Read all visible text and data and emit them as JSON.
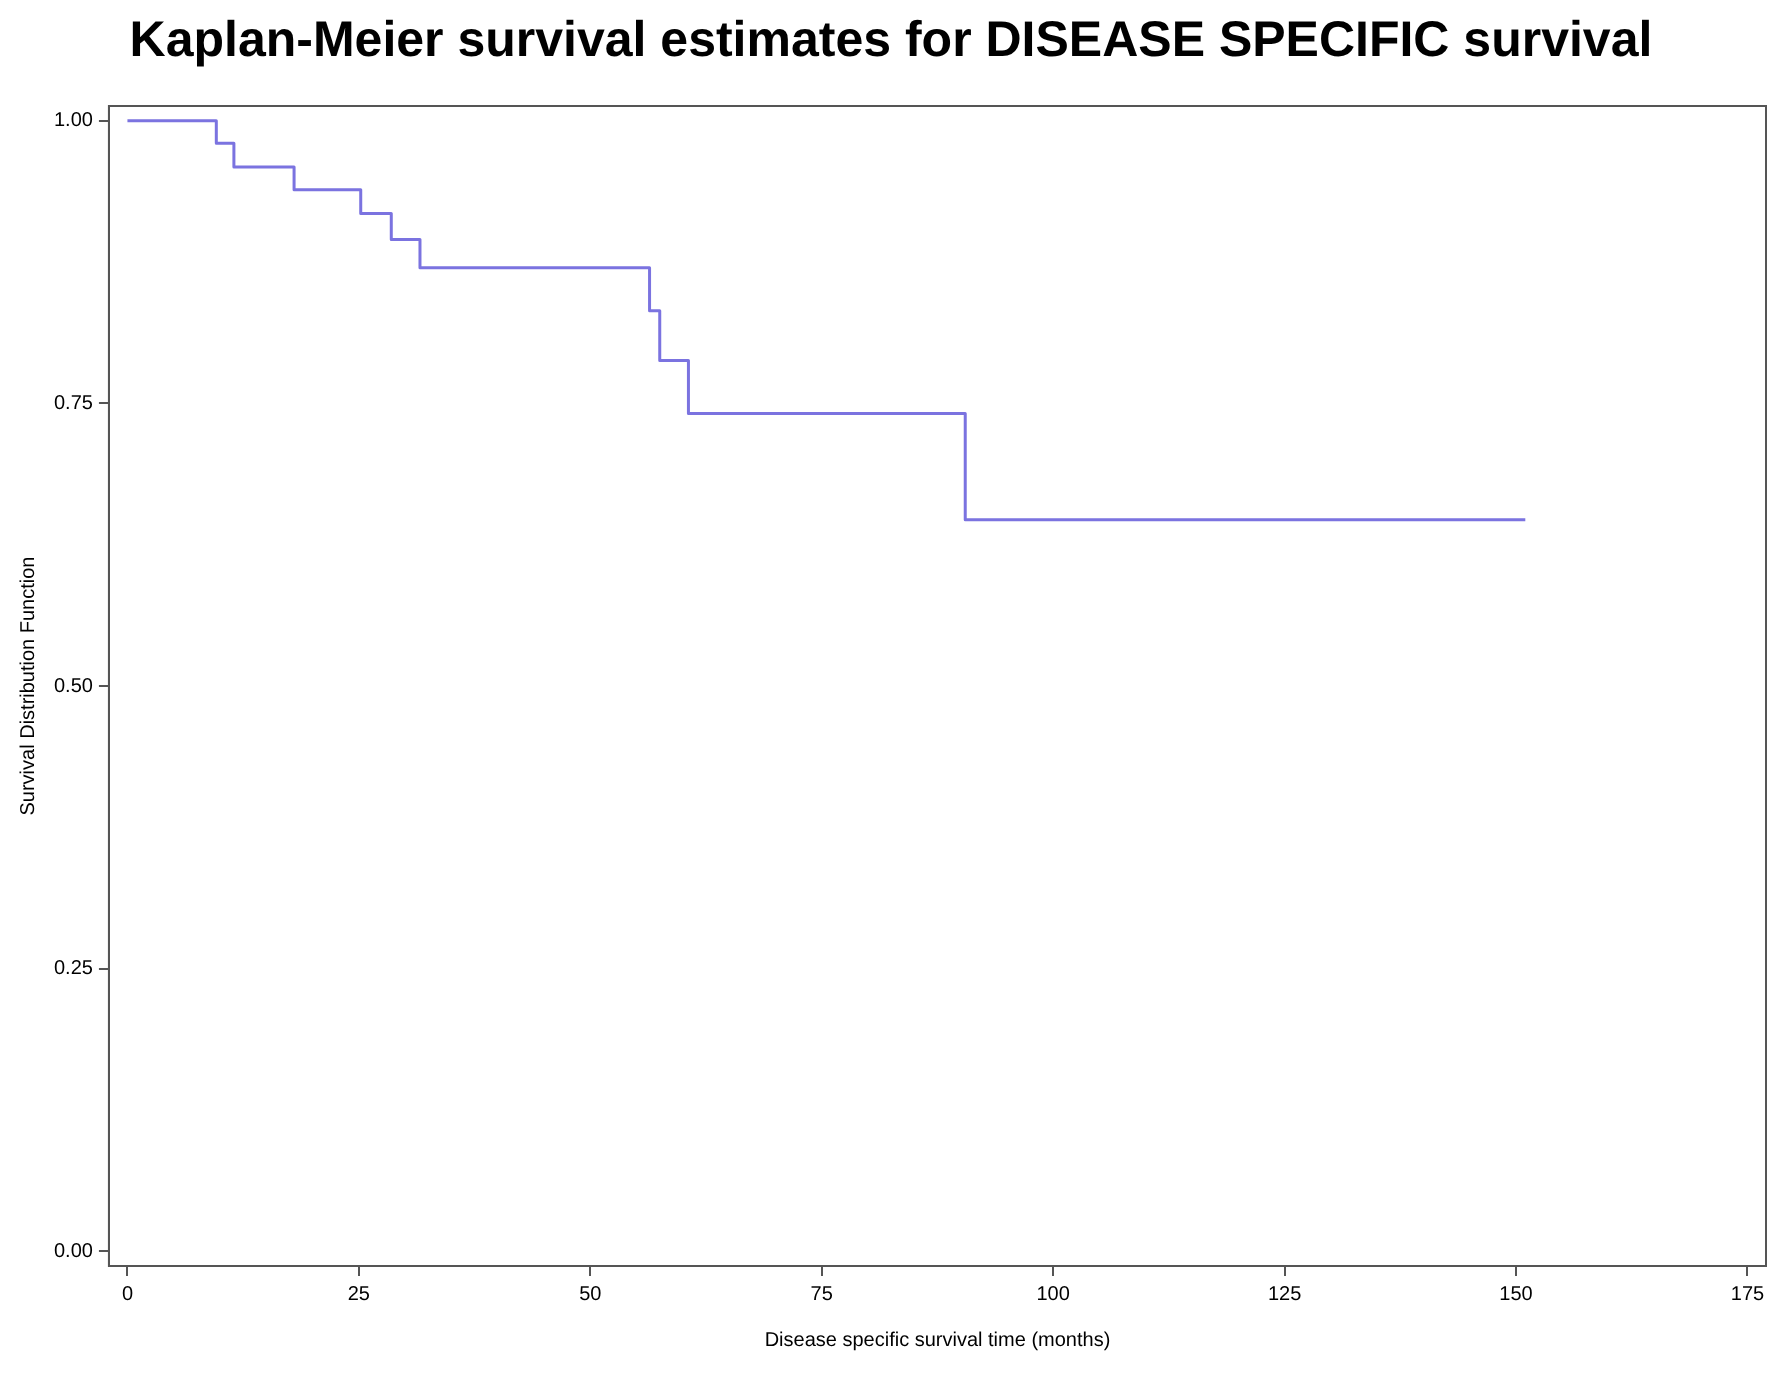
{
  "chart_data": {
    "type": "step",
    "title": "Kaplan-Meier survival estimates  for DISEASE SPECIFIC survival",
    "xlabel": "Disease specific survival time (months)",
    "ylabel": "Survival Distribution Function",
    "series": [
      {
        "color": "#7b73e0",
        "x": [
          0,
          9.6,
          11.5,
          18.0,
          25.2,
          28.5,
          31.6,
          56.4,
          57.5,
          60.6,
          90.5,
          151.0
        ],
        "values": [
          1.0,
          0.98,
          0.959,
          0.939,
          0.918,
          0.895,
          0.87,
          0.832,
          0.788,
          0.741,
          0.647,
          0.647
        ]
      }
    ],
    "xlim": [
      -2,
      177
    ],
    "ylim": [
      -0.013,
      1.013
    ],
    "xticks": [
      0,
      25,
      50,
      75,
      100,
      125,
      150,
      175
    ],
    "yticks": [
      {
        "value": 0,
        "label": "0.00"
      },
      {
        "value": 0.25,
        "label": "0.25"
      },
      {
        "value": 0.5,
        "label": "0.50"
      },
      {
        "value": 0.75,
        "label": "0.75"
      },
      {
        "value": 1,
        "label": "1.00"
      }
    ],
    "grid": false,
    "legend": false,
    "marker": "none",
    "line_style": "solid"
  }
}
